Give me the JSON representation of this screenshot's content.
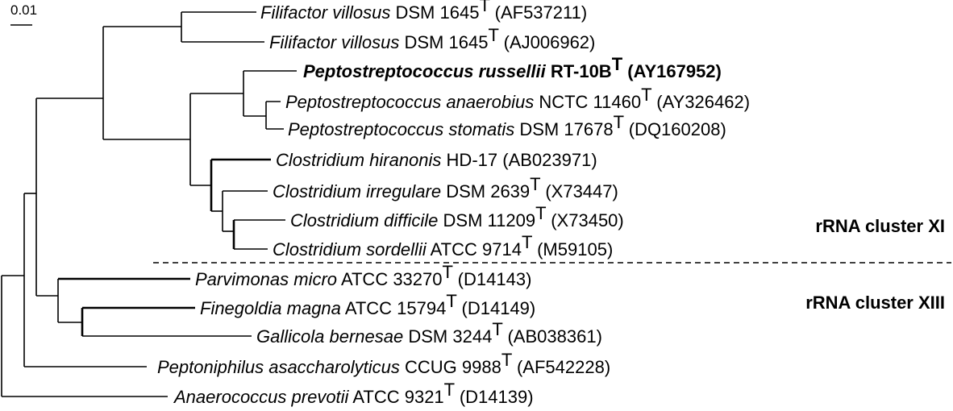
{
  "scale_bar": {
    "label": "0.01"
  },
  "taxa": [
    {
      "species": "Filifactor villosus",
      "strain": "DSM 1645",
      "type_strain": true,
      "accession": "(AF537211)",
      "bold": false
    },
    {
      "species": "Filifactor villosus",
      "strain": "DSM 1645",
      "type_strain": true,
      "accession": "(AJ006962)",
      "bold": false
    },
    {
      "species": "Peptostreptococcus russellii",
      "strain": "RT-10B",
      "type_strain": true,
      "accession": "(AY167952)",
      "bold": true
    },
    {
      "species": "Peptostreptococcus anaerobius",
      "strain": "NCTC 11460",
      "type_strain": true,
      "accession": "(AY326462)",
      "bold": false
    },
    {
      "species": "Peptostreptococcus stomatis",
      "strain": "DSM 17678",
      "type_strain": true,
      "accession": "(DQ160208)",
      "bold": false
    },
    {
      "species": "Clostridium hiranonis",
      "strain": "HD-17",
      "type_strain": false,
      "accession": "(AB023971)",
      "bold": false
    },
    {
      "species": "Clostridium irregulare",
      "strain": "DSM 2639",
      "type_strain": true,
      "accession": "(X73447)",
      "bold": false
    },
    {
      "species": "Clostridium difficile",
      "strain": "DSM 11209",
      "type_strain": true,
      "accession": "(X73450)",
      "bold": false
    },
    {
      "species": "Clostridium sordellii",
      "strain": "ATCC 9714",
      "type_strain": true,
      "accession": "(M59105)",
      "bold": false
    },
    {
      "species": "Parvimonas micro",
      "strain": "ATCC 33270",
      "type_strain": true,
      "accession": "(D14143)",
      "bold": false
    },
    {
      "species": "Finegoldia magna",
      "strain": "ATCC 15794",
      "type_strain": true,
      "accession": "(D14149)",
      "bold": false
    },
    {
      "species": "Gallicola bernesae",
      "strain": "DSM 3244",
      "type_strain": true,
      "accession": "(AB038361)",
      "bold": false
    },
    {
      "species": "Peptoniphilus asaccharolyticus",
      "strain": "CCUG 9988",
      "type_strain": true,
      "accession": "(AF542228)",
      "bold": false
    },
    {
      "species": "Anaerococcus prevotii",
      "strain": "ATCC 9321",
      "type_strain": true,
      "accession": "(D14139)",
      "bold": false
    }
  ],
  "type_strain_mark": "T",
  "clusters": [
    {
      "label": "rRNA cluster XI"
    },
    {
      "label": "rRNA cluster XIII"
    }
  ]
}
